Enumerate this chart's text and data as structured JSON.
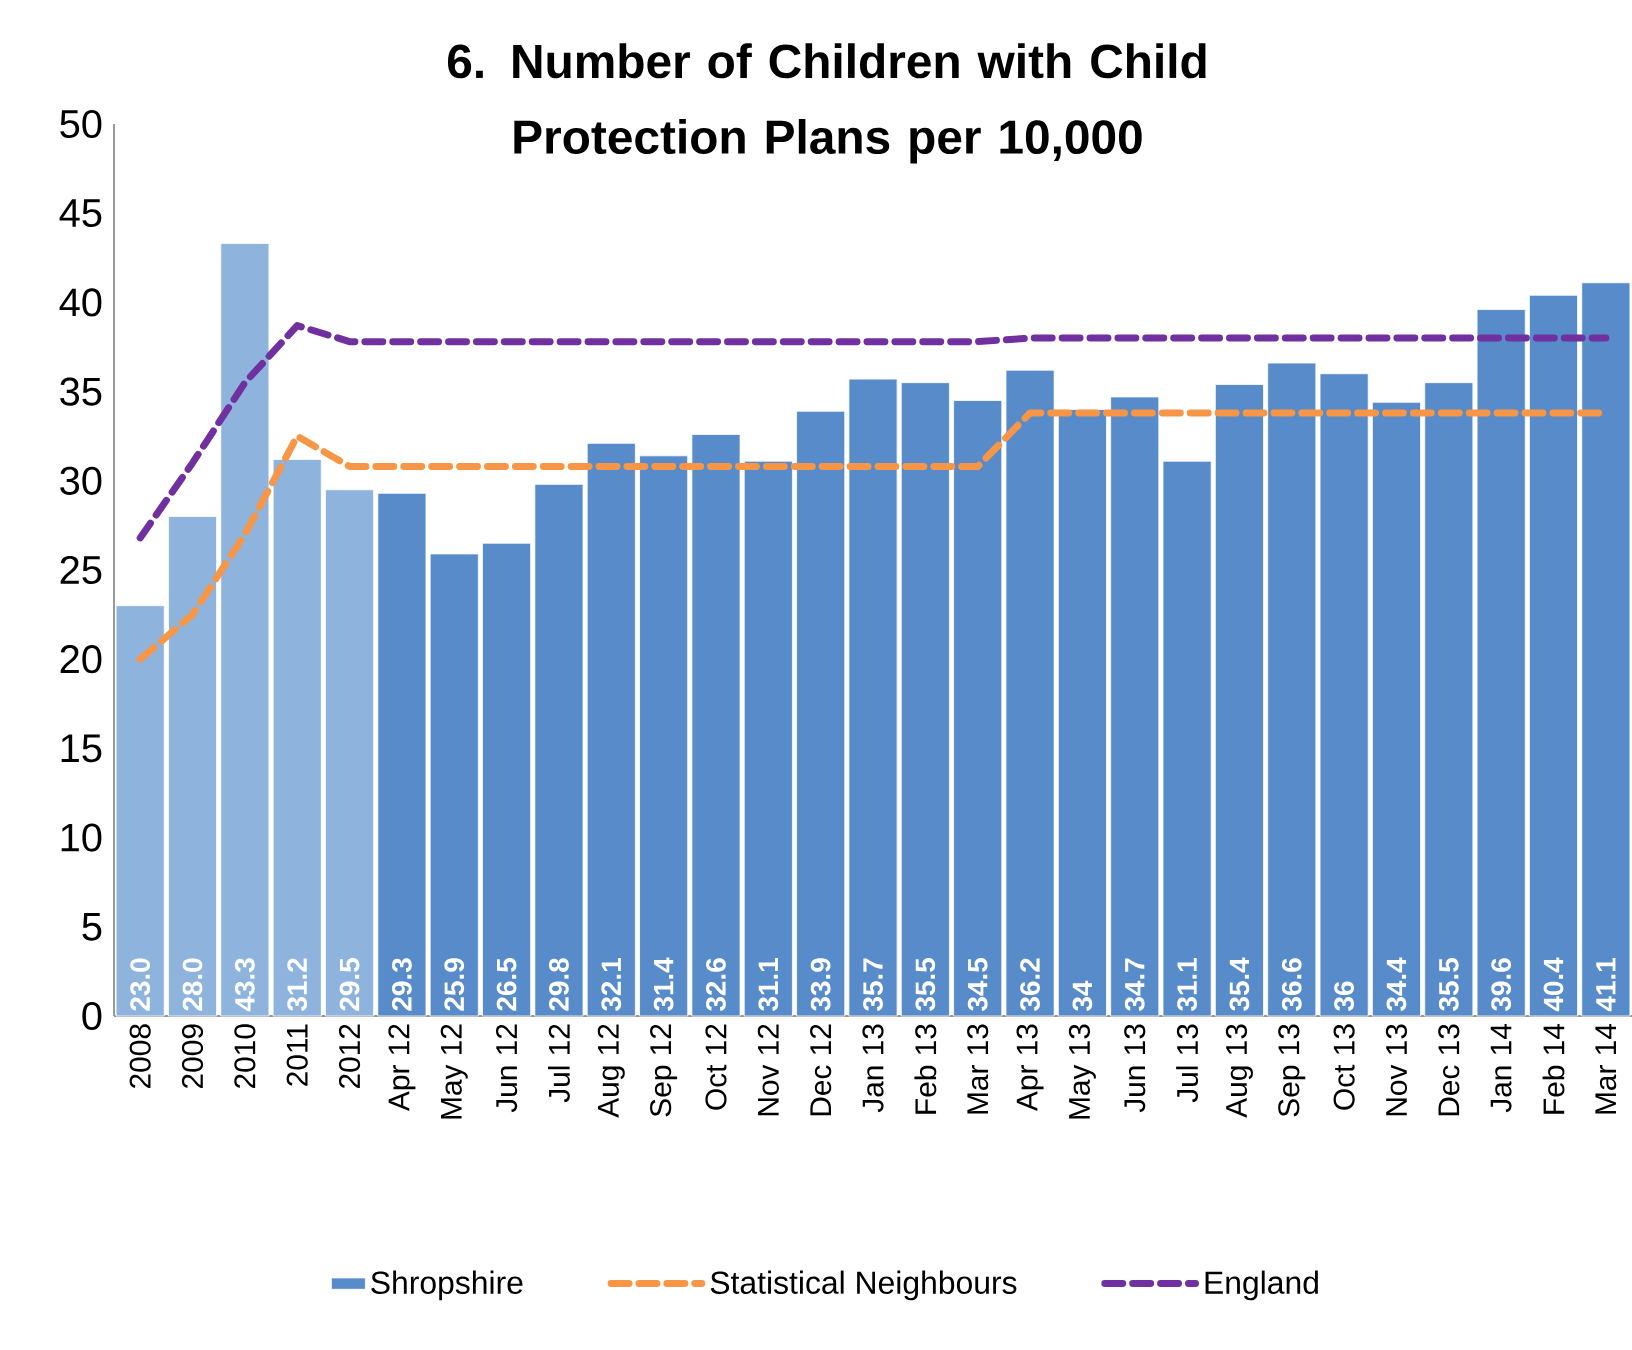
{
  "chart_data": {
    "type": "bar",
    "title": "6. Number of Children with Child Protection Plans  per 10,000",
    "categories": [
      "2008",
      "2009",
      "2010",
      "2011",
      "2012",
      "Apr 12",
      "May 12",
      "Jun 12",
      "Jul 12",
      "Aug 12",
      "Sep 12",
      "Oct 12",
      "Nov 12",
      "Dec 12",
      "Jan 13",
      "Feb 13",
      "Mar 13",
      "Apr 13",
      "May 13",
      "Jun 13",
      "Jul 13",
      "Aug 13",
      "Sep 13",
      "Oct 13",
      "Nov 13",
      "Dec 13",
      "Jan 14",
      "Feb 14",
      "Mar 14"
    ],
    "series": [
      {
        "name": "Shropshire",
        "values": [
          23.0,
          28.0,
          43.3,
          31.2,
          29.5,
          29.3,
          25.9,
          26.5,
          29.8,
          32.1,
          31.4,
          32.6,
          31.1,
          33.9,
          35.7,
          35.5,
          34.5,
          36.2,
          34,
          34.7,
          31.1,
          35.4,
          36.6,
          36,
          34.4,
          35.5,
          39.6,
          40.4,
          41.1
        ],
        "value_labels": [
          "23.0",
          "28.0",
          "43.3",
          "31.2",
          "29.5",
          "29.3",
          "25.9",
          "26.5",
          "29.8",
          "32.1",
          "31.4",
          "32.6",
          "31.1",
          "33.9",
          "35.7",
          "35.5",
          "34.5",
          "36.2",
          "34",
          "34.7",
          "31.1",
          "35.4",
          "36.6",
          "36",
          "34.4",
          "35.5",
          "39.6",
          "40.4",
          "41.1"
        ],
        "colors": [
          "#8eb4de",
          "#8eb4de",
          "#8eb4de",
          "#8eb4de",
          "#8eb4de",
          "#588bc9",
          "#588bc9",
          "#588bc9",
          "#588bc9",
          "#588bc9",
          "#588bc9",
          "#588bc9",
          "#588bc9",
          "#588bc9",
          "#588bc9",
          "#588bc9",
          "#588bc9",
          "#588bc9",
          "#588bc9",
          "#588bc9",
          "#588bc9",
          "#588bc9",
          "#588bc9",
          "#588bc9",
          "#588bc9",
          "#588bc9",
          "#588bc9",
          "#588bc9",
          "#588bc9"
        ]
      },
      {
        "name": "Statistical Neighbours",
        "type": "line",
        "color": "#f79646",
        "line_style": "dashed",
        "values": [
          20.0,
          22.5,
          27.0,
          32.5,
          30.8,
          30.8,
          30.8,
          30.8,
          30.8,
          30.8,
          30.8,
          30.8,
          30.8,
          30.8,
          30.8,
          30.8,
          30.8,
          33.8,
          33.8,
          33.8,
          33.8,
          33.8,
          33.8,
          33.8,
          33.8,
          33.8,
          33.8,
          33.8,
          33.8
        ]
      },
      {
        "name": "England",
        "type": "line",
        "color": "#7030a0",
        "line_style": "dashed",
        "values": [
          26.8,
          31.0,
          35.5,
          38.7,
          37.8,
          37.8,
          37.8,
          37.8,
          37.8,
          37.8,
          37.8,
          37.8,
          37.8,
          37.8,
          37.8,
          37.8,
          37.8,
          38.0,
          38.0,
          38.0,
          38.0,
          38.0,
          38.0,
          38.0,
          38.0,
          38.0,
          38.0,
          38.0,
          38.0
        ]
      }
    ],
    "ylim": [
      0,
      50
    ],
    "yticks": [
      0,
      5,
      10,
      15,
      20,
      25,
      30,
      35,
      40,
      45,
      50
    ],
    "grid": false,
    "legend": "bottom"
  }
}
